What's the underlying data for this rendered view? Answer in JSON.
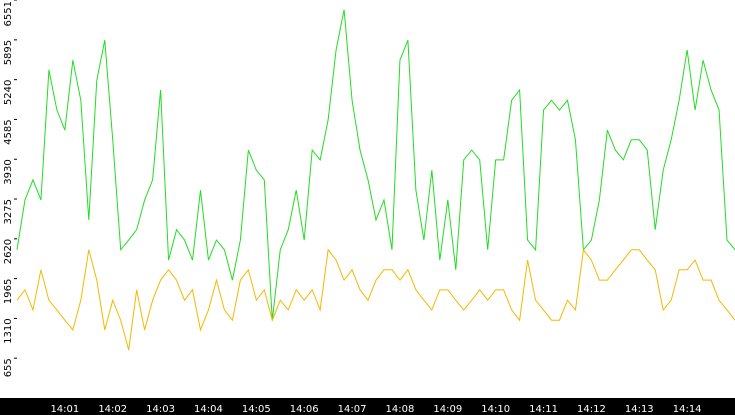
{
  "chart_data": {
    "type": "line",
    "categories": [
      null,
      null,
      null,
      null,
      null,
      null,
      "14:01",
      null,
      null,
      null,
      null,
      null,
      "14:02",
      null,
      null,
      null,
      null,
      null,
      "14:03",
      null,
      null,
      null,
      null,
      null,
      "14:04",
      null,
      null,
      null,
      null,
      null,
      "14:05",
      null,
      null,
      null,
      null,
      null,
      "14:06",
      null,
      null,
      null,
      null,
      null,
      "14:07",
      null,
      null,
      null,
      null,
      null,
      "14:08",
      null,
      null,
      null,
      null,
      null,
      "14:09",
      null,
      null,
      null,
      null,
      null,
      "14:10",
      null,
      null,
      null,
      null,
      null,
      "14:11",
      null,
      null,
      null,
      null,
      null,
      "14:12",
      null,
      null,
      null,
      null,
      null,
      "14:13",
      null,
      null,
      null,
      null,
      null,
      "14:14",
      null,
      null,
      null,
      null,
      null,
      null
    ],
    "series": [
      {
        "color": "#22dd22",
        "values": [
          2440,
          3260,
          3590,
          3260,
          5400,
          4740,
          4410,
          5560,
          4900,
          2930,
          5230,
          5890,
          4250,
          2440,
          2600,
          2770,
          3260,
          3590,
          5070,
          2270,
          2770,
          2600,
          2270,
          3420,
          2270,
          2600,
          2440,
          1940,
          2600,
          4080,
          3750,
          3590,
          1280,
          2440,
          2770,
          3420,
          2600,
          4080,
          3920,
          4580,
          5730,
          6390,
          4900,
          4080,
          3590,
          2930,
          3260,
          2440,
          5560,
          5890,
          3420,
          2600,
          3750,
          2270,
          3260,
          2110,
          3920,
          4080,
          3920,
          2440,
          3920,
          3920,
          4900,
          5070,
          2600,
          2440,
          4740,
          4900,
          4740,
          4900,
          4250,
          2440,
          2600,
          3260,
          4410,
          4080,
          3920,
          4250,
          4250,
          4080,
          2770,
          3750,
          4250,
          4900,
          5730,
          4740,
          5560,
          5070,
          4740,
          2600,
          2440
        ]
      },
      {
        "color": "#f5b800",
        "values": [
          1610,
          1780,
          1450,
          2110,
          1610,
          1450,
          1280,
          1120,
          1610,
          2440,
          1940,
          1120,
          1610,
          1280,
          790,
          1780,
          1120,
          1610,
          1940,
          2110,
          1940,
          1610,
          1780,
          1120,
          1450,
          1940,
          1450,
          1280,
          1940,
          2110,
          1610,
          1780,
          1280,
          1610,
          1450,
          1780,
          1610,
          1780,
          1450,
          2440,
          2270,
          1940,
          2110,
          1780,
          1610,
          1940,
          2110,
          2110,
          1940,
          2110,
          1780,
          1610,
          1450,
          1780,
          1780,
          1610,
          1450,
          1610,
          1780,
          1610,
          1780,
          1780,
          1450,
          1280,
          2270,
          1610,
          1450,
          1280,
          1280,
          1610,
          1450,
          2440,
          2270,
          1940,
          1940,
          2110,
          2270,
          2440,
          2440,
          2270,
          2110,
          1450,
          1610,
          2110,
          2110,
          2270,
          1940,
          1940,
          1610,
          1450,
          1280
        ]
      }
    ],
    "ylim": [
      0,
      6551
    ],
    "yticks": [
      655,
      1310,
      1965,
      2620,
      3275,
      3930,
      4585,
      5240,
      5895,
      6551
    ]
  }
}
